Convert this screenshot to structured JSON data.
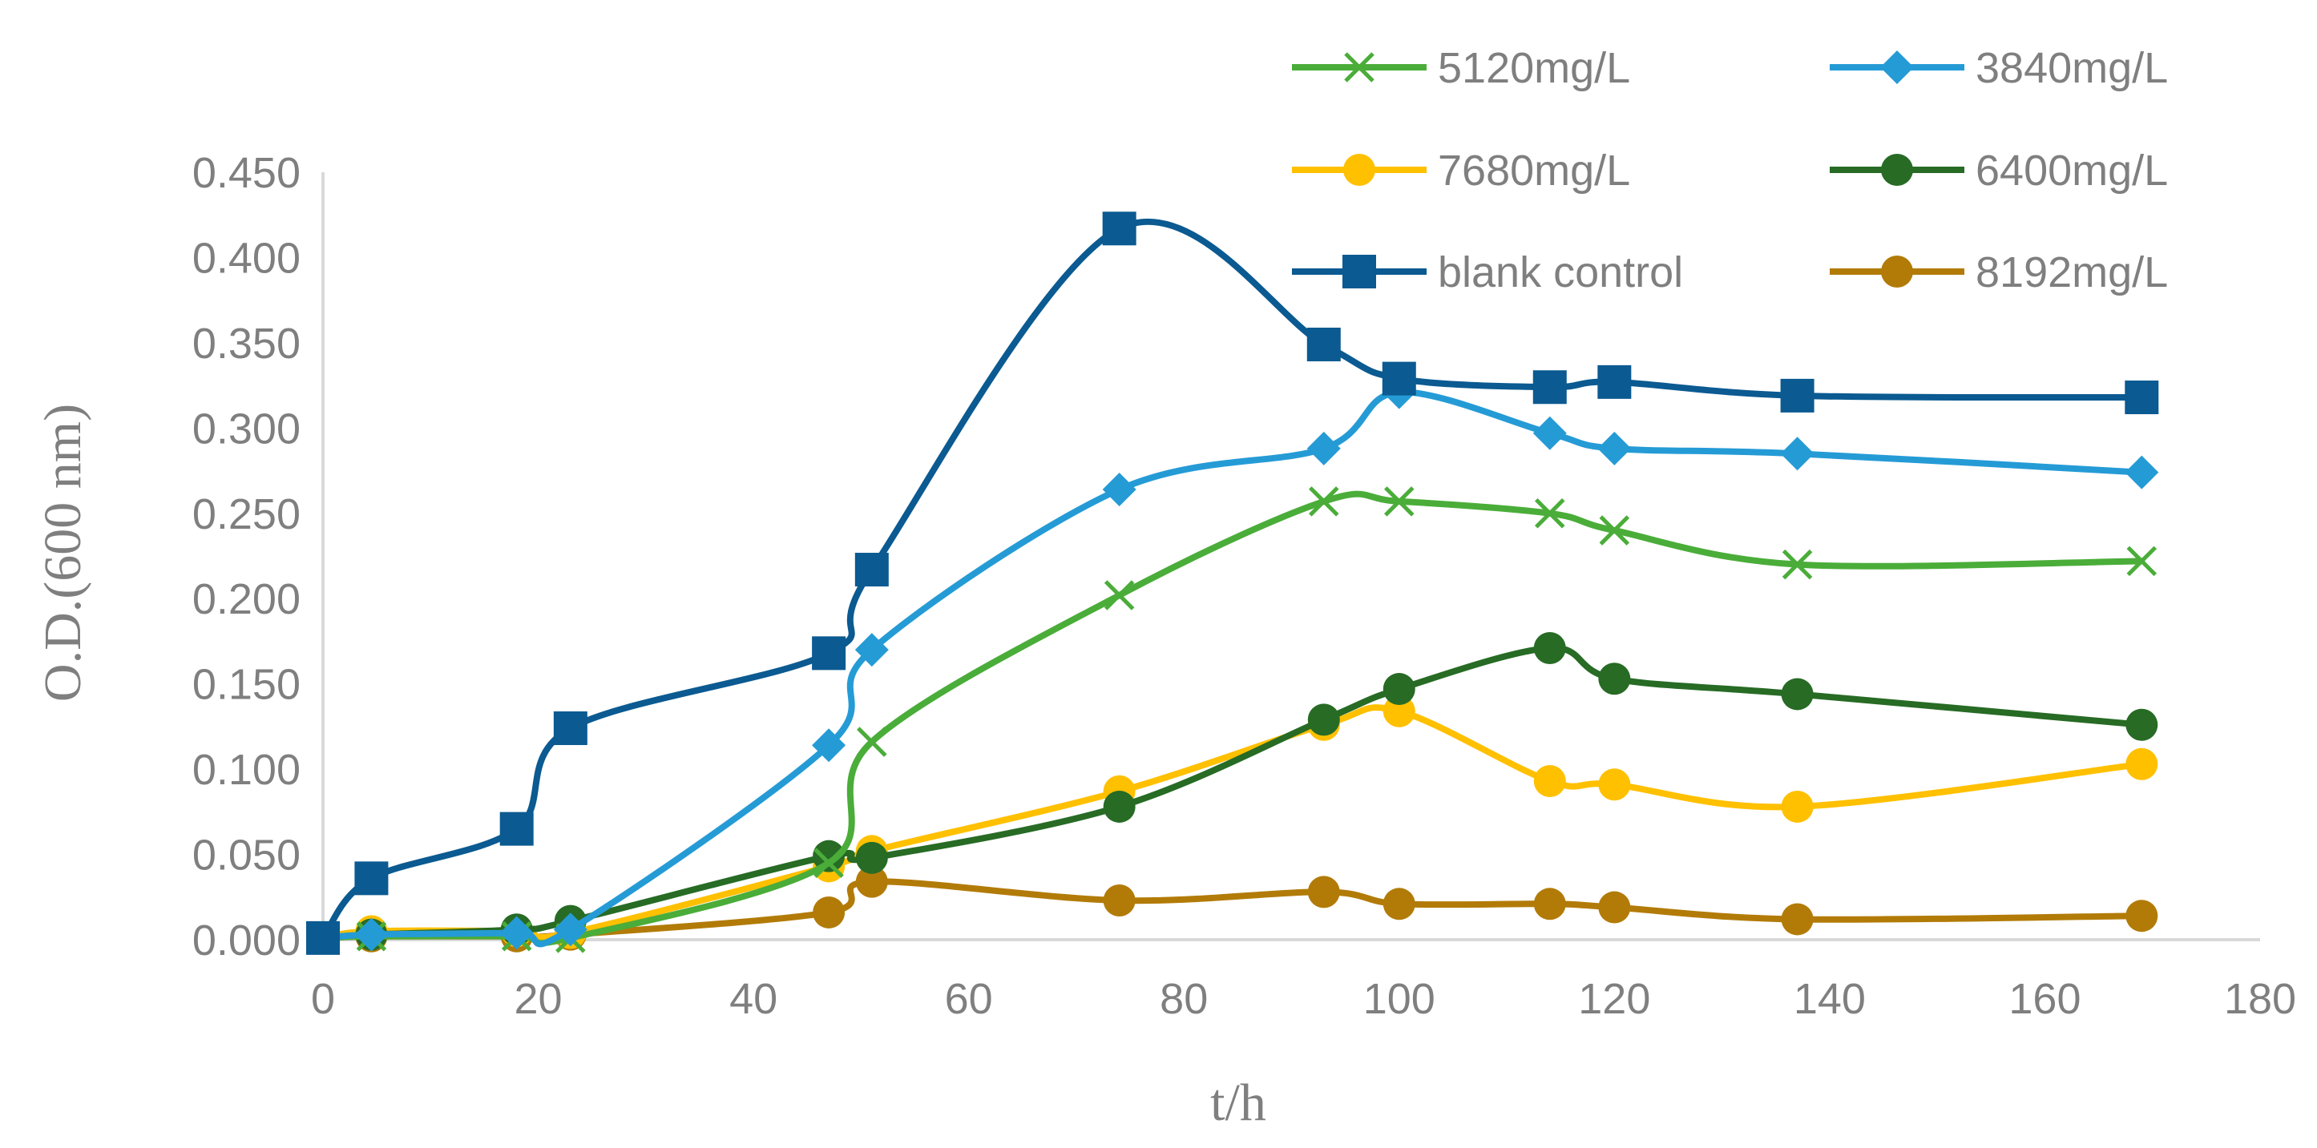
{
  "chart_data": {
    "type": "line",
    "title": "",
    "xlabel": "t/h",
    "ylabel": "O.D.(600 nm)",
    "xlim": [
      0,
      180
    ],
    "ylim": [
      0,
      0.45
    ],
    "x_ticks": [
      "0",
      "20",
      "40",
      "60",
      "80",
      "100",
      "120",
      "140",
      "160",
      "180"
    ],
    "y_ticks": [
      "0.000",
      "0.050",
      "0.100",
      "0.150",
      "0.200",
      "0.250",
      "0.300",
      "0.350",
      "0.400",
      "0.450"
    ],
    "grid": false,
    "legend_position": "top-right",
    "series": [
      {
        "name": "5120mg/L",
        "color": "#4aad39",
        "marker": "x",
        "x": [
          0,
          4.5,
          18,
          23,
          47,
          51,
          74,
          93,
          100,
          114,
          120,
          137,
          169
        ],
        "values": [
          0.001,
          0.002,
          0.002,
          0.001,
          0.045,
          0.116,
          0.202,
          0.257,
          0.257,
          0.25,
          0.24,
          0.22,
          0.222
        ]
      },
      {
        "name": "3840mg/L",
        "color": "#259bd6",
        "marker": "diamond",
        "x": [
          0,
          4.5,
          18,
          23,
          47,
          51,
          74,
          93,
          100,
          114,
          120,
          137,
          169
        ],
        "values": [
          0.001,
          0.003,
          0.004,
          0.006,
          0.114,
          0.17,
          0.264,
          0.288,
          0.321,
          0.297,
          0.288,
          0.285,
          0.274
        ]
      },
      {
        "name": "7680mg/L",
        "color": "#ffc000",
        "marker": "circle",
        "x": [
          0,
          4.5,
          18,
          23,
          47,
          51,
          74,
          93,
          100,
          114,
          120,
          137,
          169
        ],
        "values": [
          0.001,
          0.005,
          0.005,
          0.004,
          0.043,
          0.052,
          0.087,
          0.126,
          0.134,
          0.093,
          0.091,
          0.078,
          0.103
        ]
      },
      {
        "name": "6400mg/L",
        "color": "#276b25",
        "marker": "circle",
        "x": [
          0,
          4.5,
          18,
          23,
          47,
          51,
          74,
          93,
          100,
          114,
          120,
          137,
          169
        ],
        "values": [
          0.001,
          0.003,
          0.006,
          0.011,
          0.049,
          0.048,
          0.078,
          0.129,
          0.147,
          0.171,
          0.153,
          0.144,
          0.126
        ]
      },
      {
        "name": "blank control",
        "color": "#0b5a91",
        "marker": "square",
        "x": [
          0,
          4.5,
          18,
          23,
          47,
          51,
          74,
          93,
          100,
          114,
          120,
          137,
          169
        ],
        "values": [
          0.001,
          0.036,
          0.065,
          0.124,
          0.168,
          0.217,
          0.417,
          0.349,
          0.329,
          0.324,
          0.327,
          0.319,
          0.318
        ]
      },
      {
        "name": "8192mg/L",
        "color": "#b27b08",
        "marker": "circle",
        "x": [
          0,
          4.5,
          18,
          23,
          47,
          51,
          74,
          93,
          100,
          114,
          120,
          137,
          169
        ],
        "values": [
          0.001,
          0.002,
          0.002,
          0.003,
          0.016,
          0.034,
          0.023,
          0.028,
          0.021,
          0.021,
          0.019,
          0.012,
          0.014
        ]
      }
    ]
  }
}
